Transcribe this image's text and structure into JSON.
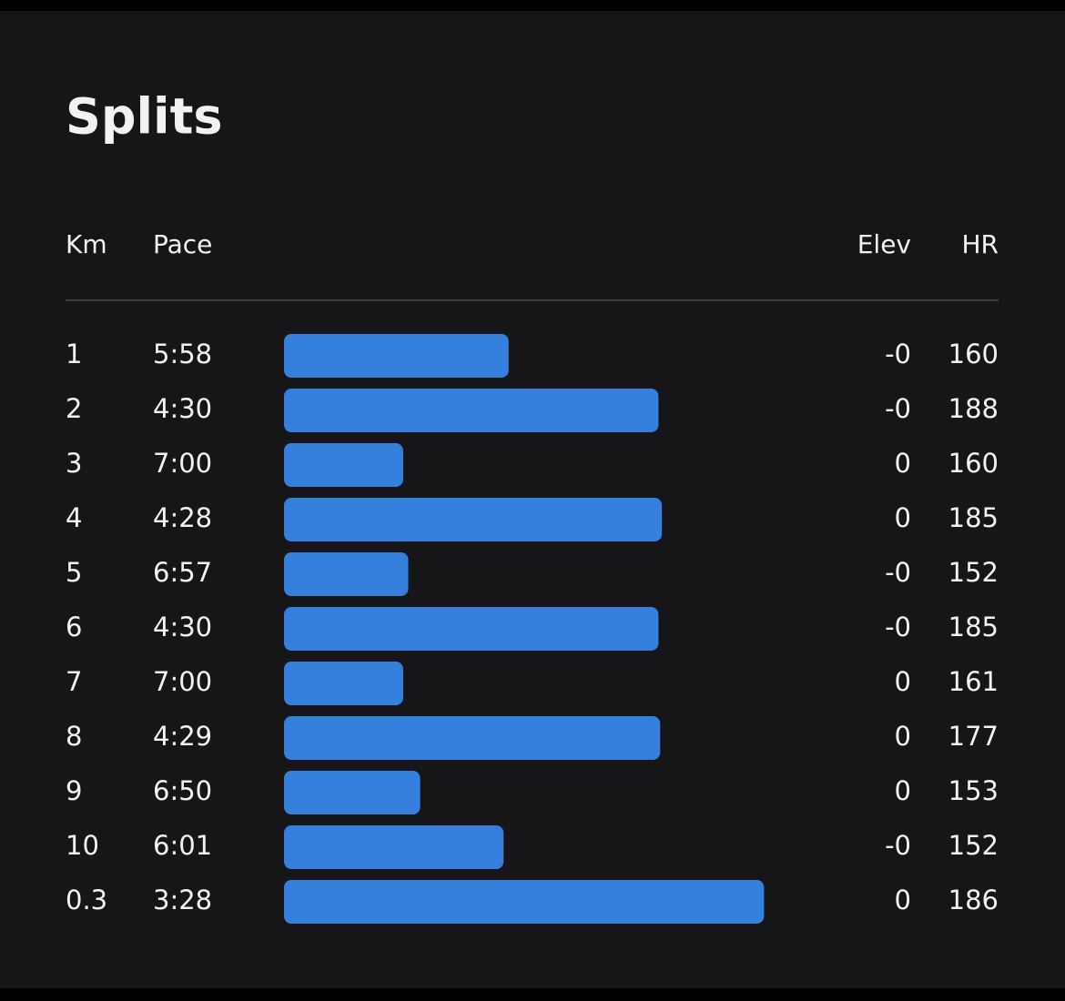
{
  "header": {
    "title": "Splits"
  },
  "table": {
    "columns": [
      "Km",
      "Pace",
      "Elev",
      "HR"
    ],
    "rows": [
      [
        "1",
        "5:58",
        "-0",
        "160"
      ],
      [
        "2",
        "4:30",
        "-0",
        "188"
      ],
      [
        "3",
        "7:00",
        "0",
        "160"
      ],
      [
        "4",
        "4:28",
        "0",
        "185"
      ],
      [
        "5",
        "6:57",
        "-0",
        "152"
      ],
      [
        "6",
        "4:30",
        "-0",
        "185"
      ],
      [
        "7",
        "7:00",
        "0",
        "161"
      ],
      [
        "8",
        "4:29",
        "0",
        "177"
      ],
      [
        "9",
        "6:50",
        "0",
        "153"
      ],
      [
        "10",
        "6:01",
        "-0",
        "152"
      ],
      [
        "0.3",
        "3:28",
        "0",
        "186"
      ]
    ]
  }
}
